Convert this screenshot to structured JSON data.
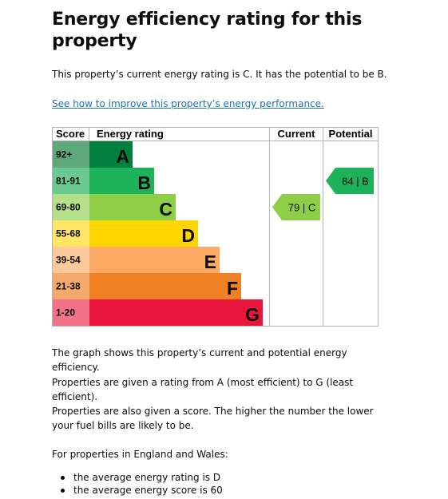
{
  "title": "Energy efficiency rating for this property",
  "intro": "This property’s current energy rating is C. It has the potential to be B.",
  "improve_link": "See how to improve this property’s energy performance.",
  "chart": {
    "headers": {
      "score": "Score",
      "rating": "Energy rating",
      "current": "Current",
      "potential": "Potential"
    },
    "bands": [
      {
        "range": "92+",
        "letter": "A",
        "color": "#007f3d",
        "score_color": "#5fa87c",
        "fraction": 0.24
      },
      {
        "range": "81-91",
        "letter": "B",
        "color": "#1eb35a",
        "score_color": "#6ac98f",
        "fraction": 0.36
      },
      {
        "range": "69-80",
        "letter": "C",
        "color": "#8dce46",
        "score_color": "#b5df8a",
        "fraction": 0.48
      },
      {
        "range": "55-68",
        "letter": "D",
        "color": "#ffd500",
        "score_color": "#ffe566",
        "fraction": 0.6
      },
      {
        "range": "39-54",
        "letter": "E",
        "color": "#fcaa65",
        "score_color": "#fdc99b",
        "fraction": 0.72
      },
      {
        "range": "21-38",
        "letter": "F",
        "color": "#ef8023",
        "score_color": "#f5a96a",
        "fraction": 0.84
      },
      {
        "range": "1-20",
        "letter": "G",
        "color": "#e9153b",
        "score_color": "#f2728a",
        "fraction": 0.96
      }
    ],
    "current": {
      "score": "79",
      "letter": "C",
      "band_index": 2,
      "color": "#8dce46"
    },
    "potential": {
      "score": "84",
      "letter": "B",
      "band_index": 1,
      "color": "#1eb35a"
    }
  },
  "body_paragraphs": [
    "The graph shows this property’s current and potential energy efficiency.",
    "Properties are given a rating from A (most efficient) to G (least efficient).",
    "Properties are also given a score. The higher the number the lower your fuel bills are likely to be.",
    "For properties in England and Wales:"
  ],
  "averages": [
    "the average energy rating is D",
    "the average energy score is 60"
  ]
}
